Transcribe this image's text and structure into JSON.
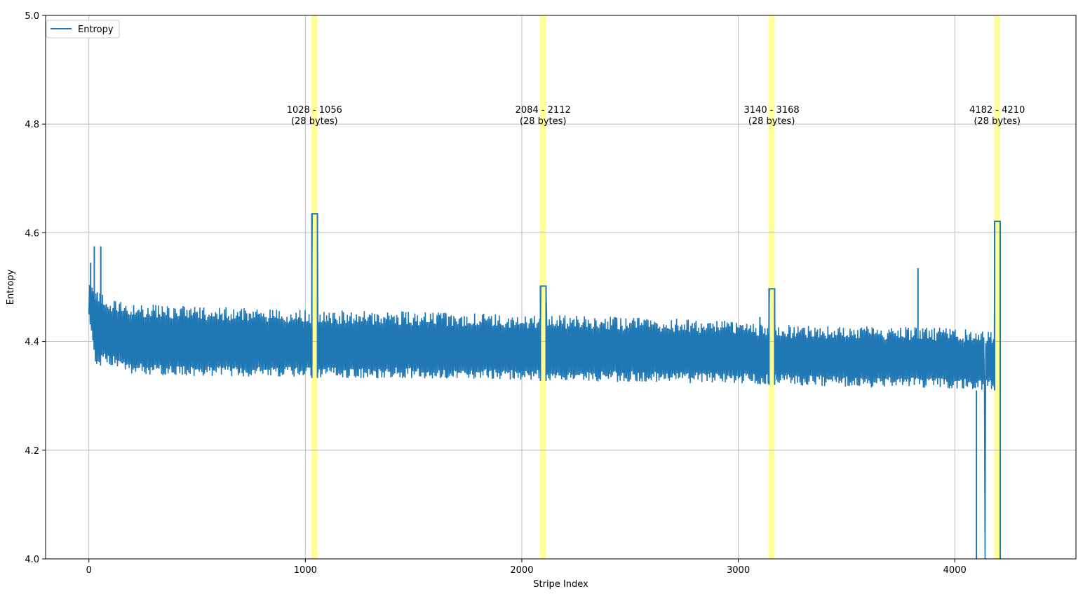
{
  "chart_data": {
    "type": "line",
    "xlabel": "Stripe Index",
    "ylabel": "Entropy",
    "xlim": [
      -200,
      4560
    ],
    "ylim": [
      4.0,
      5.0
    ],
    "xticks": [
      0,
      1000,
      2000,
      3000,
      4000
    ],
    "yticks": [
      4.0,
      4.2,
      4.4,
      4.6,
      4.8,
      5.0
    ],
    "xtick_labels": [
      "0",
      "1000",
      "2000",
      "3000",
      "4000"
    ],
    "ytick_labels": [
      "4.0",
      "4.2",
      "4.4",
      "4.6",
      "4.8",
      "5.0"
    ],
    "grid": true,
    "legend": {
      "position": "top-left",
      "entries": [
        {
          "label": "Entropy",
          "color": "#1f77b4"
        }
      ]
    },
    "series": [
      {
        "name": "Entropy",
        "color": "#1f77b4",
        "band_low": [
          [
            0,
            4.45
          ],
          [
            30,
            4.35
          ],
          [
            80,
            4.36
          ],
          [
            200,
            4.34
          ],
          [
            500,
            4.335
          ],
          [
            1000,
            4.333
          ],
          [
            1500,
            4.332
          ],
          [
            2000,
            4.328
          ],
          [
            2500,
            4.325
          ],
          [
            3000,
            4.322
          ],
          [
            3500,
            4.316
          ],
          [
            4000,
            4.312
          ],
          [
            4180,
            4.31
          ]
        ],
        "band_high": [
          [
            0,
            4.52
          ],
          [
            30,
            4.5
          ],
          [
            80,
            4.48
          ],
          [
            200,
            4.47
          ],
          [
            500,
            4.465
          ],
          [
            1000,
            4.458
          ],
          [
            1500,
            4.455
          ],
          [
            2000,
            4.45
          ],
          [
            2500,
            4.445
          ],
          [
            3000,
            4.438
          ],
          [
            3100,
            4.432
          ],
          [
            3500,
            4.43
          ],
          [
            4000,
            4.425
          ],
          [
            4180,
            4.42
          ]
        ],
        "spikes": [
          [
            8,
            4.545
          ],
          [
            25,
            4.575
          ],
          [
            55,
            4.575
          ],
          [
            3830,
            4.535
          ],
          [
            3100,
            4.445
          ]
        ],
        "plateaus": [
          {
            "x0": 1030,
            "x1": 1056,
            "y": 4.635
          },
          {
            "x0": 2086,
            "x1": 2112,
            "y": 4.502
          },
          {
            "x0": 3142,
            "x1": 3168,
            "y": 4.497
          },
          {
            "x0": 4184,
            "x1": 4210,
            "y": 4.621
          }
        ],
        "drop": {
          "x0": 4100,
          "x1": 4210,
          "y": 4.0
        }
      }
    ],
    "highlights": [
      {
        "x0": 1028,
        "x1": 1056,
        "label": "1028 - 1056",
        "sublabel": "(28 bytes)",
        "color": "#ffff99"
      },
      {
        "x0": 2084,
        "x1": 2112,
        "label": "2084 - 2112",
        "sublabel": "(28 bytes)",
        "color": "#ffff99"
      },
      {
        "x0": 3140,
        "x1": 3168,
        "label": "3140 - 3168",
        "sublabel": "(28 bytes)",
        "color": "#ffff99"
      },
      {
        "x0": 4182,
        "x1": 4210,
        "label": "4182 - 4210",
        "sublabel": "(28 bytes)",
        "color": "#ffff99"
      }
    ],
    "annotation_y": 4.8
  }
}
